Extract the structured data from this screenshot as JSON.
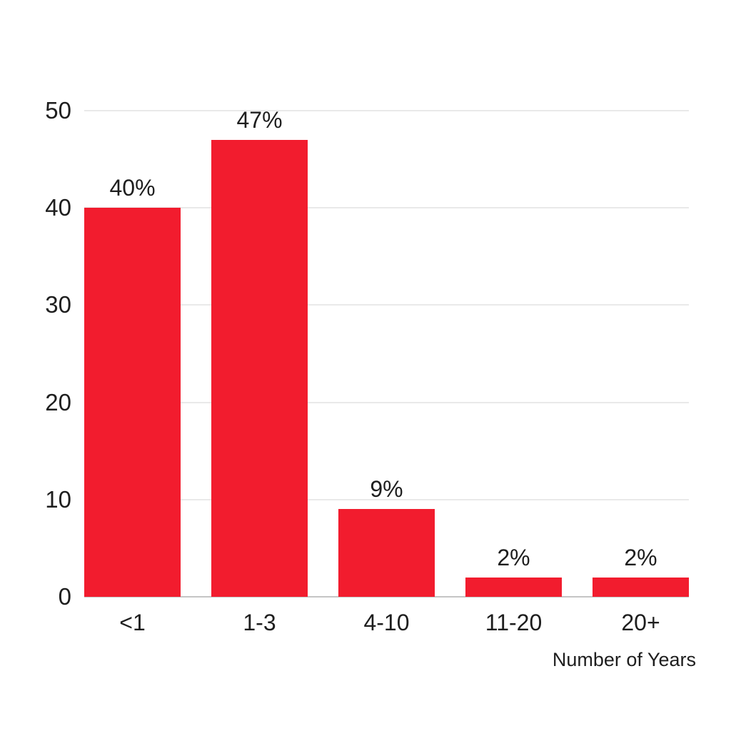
{
  "chart_data": {
    "type": "bar",
    "categories": [
      "<1",
      "1-3",
      "4-10",
      "11-20",
      "20+"
    ],
    "values": [
      40,
      47,
      9,
      2,
      2
    ],
    "value_labels": [
      "40%",
      "47%",
      "9%",
      "2%",
      "2%"
    ],
    "title": "",
    "xlabel": "Number of Years",
    "ylabel": "",
    "ylim": [
      0,
      50
    ],
    "yticks": [
      0,
      10,
      20,
      30,
      40,
      50
    ],
    "grid": true,
    "legend": "none",
    "colors": {
      "bar": "#F21C2E",
      "gridline": "#E9E9E9",
      "baseline": "#C5C5C5",
      "text": "#1E1E1E",
      "background": "#FFFFFF"
    }
  }
}
